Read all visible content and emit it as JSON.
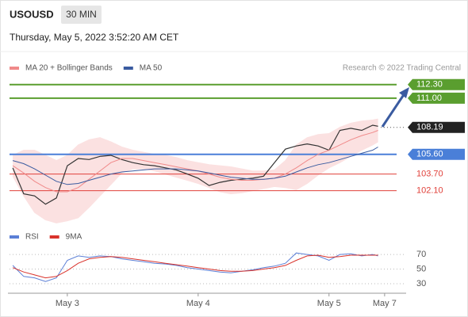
{
  "header": {
    "symbol": "USOUSD",
    "timeframe": "30 MIN",
    "datetime": "Thursday, May 5, 2022 3:52:20 AM CET"
  },
  "chart_data": [
    {
      "type": "line",
      "source": "Research © 2022 Trading Central",
      "x": [
        -10,
        -8,
        -6,
        -4,
        -2,
        0,
        2,
        4,
        6,
        8,
        10,
        12,
        14,
        16,
        18,
        20,
        22,
        24,
        26,
        28,
        30,
        32,
        34,
        36,
        38,
        40,
        42,
        44,
        46,
        48,
        50,
        52,
        54,
        56,
        57
      ],
      "xlim": [
        -10.6,
        62
      ],
      "ylim": [
        99.1,
        113.2
      ],
      "series": [
        {
          "color": "#333333",
          "values": [
            104.3,
            101.8,
            101.6,
            100.8,
            101.4,
            104.5,
            105.2,
            105.1,
            105.4,
            105.5,
            105.1,
            104.8,
            104.6,
            104.5,
            104.3,
            104.1,
            103.7,
            103.3,
            102.6,
            102.9,
            103.1,
            103.2,
            103.3,
            103.5,
            104.8,
            106.1,
            106.4,
            106.6,
            106.4,
            106.0,
            107.9,
            108.1,
            107.9,
            108.4,
            108.3
          ]
        },
        {
          "name": "MA 20 + Bollinger Bands",
          "color": "#f08a8a",
          "band_color": "#fbe1e1",
          "values": [
            104.5,
            103.8,
            103.0,
            102.4,
            102.0,
            102.0,
            102.4,
            103.2,
            104.0,
            104.8,
            105.2,
            105.2,
            105.0,
            104.8,
            104.6,
            104.4,
            104.2,
            104.0,
            103.7,
            103.4,
            103.2,
            103.1,
            103.1,
            103.2,
            103.3,
            103.7,
            104.3,
            105.0,
            105.6,
            106.0,
            106.5,
            107.0,
            107.4,
            107.7,
            107.9
          ],
          "upper": [
            105.5,
            106.0,
            106.0,
            105.5,
            105.0,
            105.5,
            106.5,
            107.0,
            107.2,
            106.8,
            106.3,
            106.0,
            105.8,
            105.6,
            105.5,
            105.3,
            105.0,
            104.8,
            104.6,
            104.5,
            104.4,
            104.2,
            104.0,
            104.0,
            104.1,
            105.0,
            106.5,
            107.2,
            107.5,
            107.6,
            108.2,
            108.6,
            108.8,
            108.9,
            109.0
          ],
          "lower": [
            103.5,
            101.6,
            100.0,
            99.3,
            99.0,
            99.2,
            99.5,
            100.5,
            101.6,
            102.7,
            103.8,
            104.2,
            104.2,
            104.0,
            103.7,
            103.4,
            103.1,
            102.8,
            102.4,
            102.0,
            101.8,
            101.9,
            102.1,
            102.3,
            102.5,
            102.4,
            102.2,
            102.8,
            103.6,
            104.3,
            104.8,
            105.4,
            106.0,
            106.5,
            106.8
          ]
        },
        {
          "name": "MA 50",
          "color": "#3a5ba0",
          "values": [
            105.0,
            104.7,
            104.2,
            103.6,
            103.0,
            102.7,
            102.8,
            103.1,
            103.4,
            103.7,
            103.9,
            104.0,
            104.1,
            104.2,
            104.2,
            104.2,
            104.1,
            104.0,
            103.8,
            103.6,
            103.4,
            103.3,
            103.2,
            103.2,
            103.3,
            103.5,
            103.9,
            104.3,
            104.6,
            104.8,
            105.1,
            105.4,
            105.7,
            106.0,
            106.3
          ]
        }
      ],
      "levels": [
        {
          "value": 112.3,
          "label": "112.30",
          "color": "#5a9e2f",
          "boxed": true
        },
        {
          "value": 111,
          "label": "111.00",
          "color": "#5a9e2f",
          "boxed": true
        },
        {
          "value": 108.19,
          "label": "108.19",
          "color": "#222222",
          "boxed": true,
          "dotted": true
        },
        {
          "value": 105.6,
          "label": "105.60",
          "color": "#4a7fd8",
          "boxed": true
        },
        {
          "value": 103.7,
          "label": "103.70",
          "color": "#e0403a",
          "boxed": false
        },
        {
          "value": 102.1,
          "label": "102.10",
          "color": "#e0403a",
          "boxed": false
        }
      ]
    },
    {
      "type": "line",
      "x": [
        -10,
        -8,
        -6,
        -4,
        -2,
        0,
        2,
        4,
        6,
        8,
        10,
        12,
        14,
        16,
        18,
        20,
        22,
        24,
        26,
        28,
        30,
        32,
        34,
        36,
        38,
        40,
        42,
        44,
        46,
        48,
        50,
        52,
        54,
        56,
        57
      ],
      "xlim": [
        -10.6,
        62
      ],
      "ylim": [
        17,
        82
      ],
      "yticks": [
        70,
        50,
        30
      ],
      "grid": true,
      "xticks": [
        {
          "value": 0,
          "label": "May 3"
        },
        {
          "value": 24,
          "label": "May 4"
        },
        {
          "value": 48,
          "label": "May 5"
        },
        {
          "value": 58.2,
          "label": "May 7"
        }
      ],
      "series": [
        {
          "name": "RSI",
          "color": "#5b7fd6",
          "values": [
            55,
            40,
            38,
            33,
            38,
            62,
            68,
            66,
            68,
            67,
            64,
            62,
            60,
            58,
            57,
            55,
            52,
            50,
            48,
            46,
            45,
            47,
            49,
            52,
            54,
            58,
            72,
            70,
            68,
            62,
            70,
            71,
            68,
            70,
            68
          ]
        },
        {
          "name": "9MA",
          "color": "#d9322b",
          "values": [
            52,
            46,
            42,
            38,
            40,
            48,
            58,
            64,
            66,
            67,
            66,
            64,
            62,
            60,
            58,
            56,
            54,
            52,
            50,
            48,
            47,
            47,
            48,
            50,
            52,
            55,
            62,
            68,
            69,
            66,
            67,
            69,
            69,
            69,
            69
          ]
        }
      ]
    }
  ]
}
